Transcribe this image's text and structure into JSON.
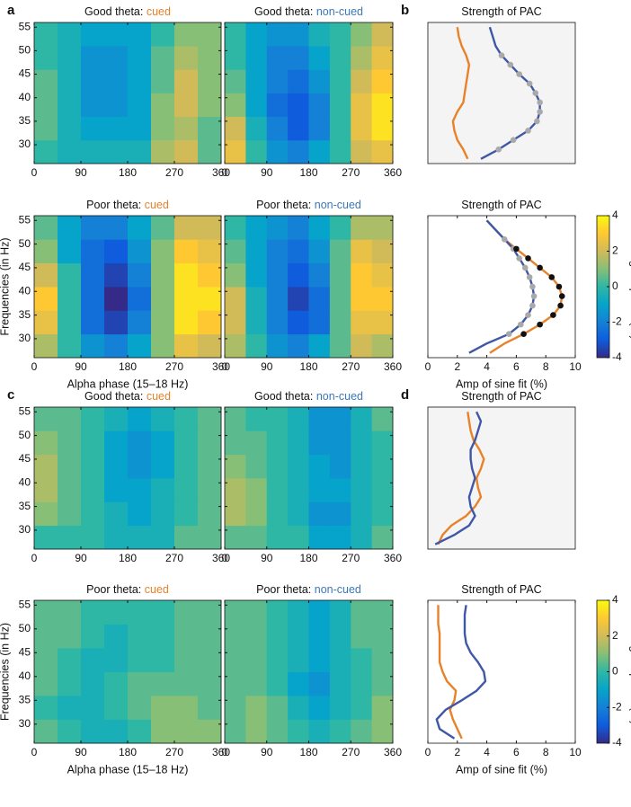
{
  "chart_data": [
    {
      "type": "heatmap",
      "panel_label": "a",
      "title": "Good theta:",
      "condition": "cued",
      "condition_color": "#e8822a",
      "x": [
        22.5,
        67.5,
        112.5,
        157.5,
        202.5,
        247.5,
        292.5,
        337.5
      ],
      "y": [
        28.5,
        33.5,
        38.5,
        43.5,
        48.5,
        53.5
      ],
      "z": [
        [
          0,
          -0.5,
          -0.5,
          -0.5,
          -0.5,
          1.5,
          2,
          0.5
        ],
        [
          0.5,
          -0.5,
          -1,
          -1,
          -1,
          1,
          1.5,
          0.5
        ],
        [
          0.5,
          -0.5,
          -1.5,
          -1.5,
          -1,
          1,
          2,
          1
        ],
        [
          0.5,
          -0.5,
          -1.5,
          -1.5,
          -1,
          0.5,
          2,
          1
        ],
        [
          0,
          -0.5,
          -1.5,
          -1.5,
          -1,
          0.5,
          1.5,
          1
        ],
        [
          0,
          -0.5,
          -1,
          -1,
          -1,
          0,
          1,
          1
        ]
      ],
      "xlim": [
        0,
        360
      ],
      "ylim": [
        26,
        56
      ],
      "xticks": [
        0,
        90,
        180,
        270,
        360
      ],
      "yticks": [
        30,
        35,
        40,
        45,
        50,
        55
      ],
      "show_ytick_labels": true
    },
    {
      "type": "heatmap",
      "title": "Good theta:",
      "condition": "non-cued",
      "condition_color": "#3b78b8",
      "x": [
        22.5,
        67.5,
        112.5,
        157.5,
        202.5,
        247.5,
        292.5,
        337.5
      ],
      "y": [
        28.5,
        33.5,
        38.5,
        43.5,
        48.5,
        53.5
      ],
      "z": [
        [
          2.5,
          0,
          -1.5,
          -2,
          -1,
          0,
          2,
          2.5
        ],
        [
          2,
          -0.5,
          -2,
          -3,
          -2,
          0,
          2.5,
          3.5
        ],
        [
          1,
          -1,
          -2.5,
          -3,
          -2,
          0,
          2.5,
          3.5
        ],
        [
          0.5,
          -1,
          -2,
          -2.5,
          -1.5,
          0,
          2,
          3
        ],
        [
          0,
          -1,
          -2,
          -2,
          -1,
          0,
          1.5,
          2.5
        ],
        [
          0,
          -1,
          -1.5,
          -1.5,
          -0.5,
          0,
          1,
          2
        ]
      ],
      "xlim": [
        0,
        360
      ],
      "ylim": [
        26,
        56
      ],
      "xticks": [
        0,
        90,
        180,
        270,
        360
      ],
      "yticks": [
        30,
        35,
        40,
        45,
        50,
        55
      ],
      "show_ytick_labels": false
    },
    {
      "type": "line",
      "panel_label": "b",
      "title": "Strength of PAC",
      "background": "#f4f4f4",
      "y": [
        27,
        29,
        31,
        33,
        35,
        37,
        39,
        41,
        43,
        45,
        47,
        49,
        51,
        53,
        55
      ],
      "series": [
        {
          "color": "#e8822a",
          "values": [
            2.7,
            2.4,
            2.0,
            1.8,
            1.7,
            2.0,
            2.4,
            2.5,
            2.6,
            2.7,
            2.8,
            2.6,
            2.3,
            2.1,
            2.0
          ]
        },
        {
          "color": "#3f57a6",
          "values": [
            3.6,
            4.8,
            5.8,
            6.8,
            7.4,
            7.6,
            7.6,
            7.3,
            6.9,
            6.2,
            5.6,
            5.0,
            4.6,
            4.4,
            4.2
          ]
        }
      ],
      "markers": [
        {
          "color": "#a9a9a9",
          "values": [
            null,
            4.8,
            5.8,
            6.8,
            7.4,
            7.6,
            7.6,
            7.3,
            6.9,
            6.2,
            5.6,
            5.0,
            null,
            null,
            null
          ]
        }
      ],
      "xlim": [
        0,
        10
      ],
      "ylim": [
        26,
        56
      ]
    },
    {
      "type": "heatmap",
      "title": "Poor theta:",
      "condition": "cued",
      "condition_color": "#e8822a",
      "x": [
        22.5,
        67.5,
        112.5,
        157.5,
        202.5,
        247.5,
        292.5,
        337.5
      ],
      "y": [
        28.5,
        33.5,
        38.5,
        43.5,
        48.5,
        53.5
      ],
      "z": [
        [
          1.5,
          0,
          -1.5,
          -2,
          -1,
          1,
          2.5,
          2
        ],
        [
          2.5,
          0,
          -2.5,
          -3.5,
          -2,
          1,
          3.5,
          3
        ],
        [
          3,
          0,
          -2.5,
          -4,
          -2.5,
          1,
          3.5,
          3.5
        ],
        [
          2,
          0,
          -2.5,
          -3.5,
          -2,
          1,
          3.5,
          3
        ],
        [
          1,
          -1,
          -2.5,
          -3,
          -1.5,
          1,
          3,
          2.5
        ],
        [
          0.5,
          -1,
          -2,
          -2,
          -1,
          0.5,
          2,
          2
        ]
      ],
      "xlim": [
        0,
        360
      ],
      "ylim": [
        26,
        56
      ],
      "xticks": [
        0,
        90,
        180,
        270,
        360
      ],
      "yticks": [
        30,
        35,
        40,
        45,
        50,
        55
      ],
      "show_ytick_labels": true,
      "xlabel": "Alpha phase (15–18 Hz)",
      "ylabel": "Frequencies (in Hz)"
    },
    {
      "type": "heatmap",
      "title": "Poor theta:",
      "condition": "non-cued",
      "condition_color": "#3b78b8",
      "x": [
        22.5,
        67.5,
        112.5,
        157.5,
        202.5,
        247.5,
        292.5,
        337.5
      ],
      "y": [
        28.5,
        33.5,
        38.5,
        43.5,
        48.5,
        53.5
      ],
      "z": [
        [
          1.5,
          0,
          -1.5,
          -2,
          -1,
          0.5,
          2,
          1.5
        ],
        [
          2,
          -0.5,
          -2,
          -3,
          -2.5,
          0.5,
          2.5,
          2.5
        ],
        [
          2,
          -0.5,
          -2,
          -3.5,
          -2.5,
          0.5,
          3,
          3
        ],
        [
          1,
          -1,
          -2,
          -3,
          -2,
          0.5,
          3,
          2.5
        ],
        [
          0.5,
          -1,
          -2,
          -2.5,
          -1.5,
          0.5,
          2.5,
          2
        ],
        [
          0,
          -1,
          -1.5,
          -2,
          -1,
          0,
          1.5,
          1.5
        ]
      ],
      "xlim": [
        0,
        360
      ],
      "ylim": [
        26,
        56
      ],
      "xticks": [
        0,
        90,
        180,
        270,
        360
      ],
      "yticks": [
        30,
        35,
        40,
        45,
        50,
        55
      ],
      "show_ytick_labels": false
    },
    {
      "type": "line",
      "title": "Strength of PAC",
      "background": "#ffffff",
      "y": [
        27,
        29,
        31,
        33,
        35,
        37,
        39,
        41,
        43,
        45,
        47,
        49,
        51,
        53,
        55
      ],
      "series": [
        {
          "color": "#e8822a",
          "values": [
            4.2,
            5.2,
            6.5,
            7.6,
            8.5,
            9.0,
            9.1,
            8.9,
            8.4,
            7.6,
            6.8,
            6.0,
            5.2,
            4.6,
            4.0
          ]
        },
        {
          "color": "#3f57a6",
          "values": [
            2.8,
            4.0,
            5.5,
            6.3,
            6.8,
            7.1,
            7.2,
            7.1,
            6.9,
            6.6,
            6.2,
            5.8,
            5.2,
            4.6,
            4.0
          ]
        }
      ],
      "markers": [
        {
          "color": "#a9a9a9",
          "values": [
            null,
            null,
            5.5,
            6.3,
            6.8,
            7.1,
            7.2,
            7.1,
            6.9,
            6.6,
            6.2,
            5.8,
            5.2,
            null,
            null
          ]
        },
        {
          "color": "#111111",
          "values": [
            null,
            null,
            6.5,
            7.6,
            8.5,
            9.0,
            9.1,
            8.9,
            8.4,
            7.6,
            6.8,
            6.0,
            null,
            null,
            null
          ]
        }
      ],
      "xlim": [
        0,
        10
      ],
      "ylim": [
        26,
        56
      ],
      "xticks": [
        0,
        2,
        4,
        6,
        8,
        10
      ],
      "xlabel": "Amp of sine fit (%)"
    },
    {
      "type": "colorbar",
      "label": "Change in power (%)",
      "lim": [
        -4,
        4
      ],
      "ticks": [
        -4,
        -2,
        0,
        2,
        4
      ],
      "colormap": [
        "#352a87",
        "#0f5cdd",
        "#1481d6",
        "#06a4ca",
        "#2eb7a4",
        "#87bf77",
        "#d1bb59",
        "#fec832",
        "#f9fb0e"
      ]
    },
    {
      "type": "heatmap",
      "panel_label": "c",
      "title": "Good theta:",
      "condition": "cued",
      "condition_color": "#e8822a",
      "x": [
        22.5,
        67.5,
        112.5,
        157.5,
        202.5,
        247.5,
        292.5,
        337.5
      ],
      "y": [
        28.5,
        33.5,
        38.5,
        43.5,
        48.5,
        53.5
      ],
      "z": [
        [
          0,
          0,
          0,
          -0.5,
          -0.5,
          -0.5,
          0.5,
          0.5
        ],
        [
          1,
          0.5,
          0,
          -0.5,
          -1,
          -0.5,
          0,
          0.5
        ],
        [
          1.5,
          0.5,
          0,
          -1,
          -1,
          -0.5,
          0,
          0.5
        ],
        [
          1.5,
          0.5,
          0,
          -1,
          -1.5,
          -1,
          0,
          0.5
        ],
        [
          1,
          0.5,
          0,
          -1,
          -1.5,
          -1,
          0,
          0.5
        ],
        [
          0.5,
          0.5,
          0,
          -0.5,
          -1,
          -0.5,
          0,
          0.5
        ]
      ],
      "xlim": [
        0,
        360
      ],
      "ylim": [
        26,
        56
      ],
      "xticks": [
        0,
        90,
        180,
        270,
        360
      ],
      "yticks": [
        30,
        35,
        40,
        45,
        50,
        55
      ],
      "show_ytick_labels": true
    },
    {
      "type": "heatmap",
      "title": "Good theta:",
      "condition": "non-cued",
      "condition_color": "#3b78b8",
      "x": [
        22.5,
        67.5,
        112.5,
        157.5,
        202.5,
        247.5,
        292.5,
        337.5
      ],
      "y": [
        28.5,
        33.5,
        38.5,
        43.5,
        48.5,
        53.5
      ],
      "z": [
        [
          0.5,
          0.5,
          0,
          0,
          -1,
          -1,
          -0.5,
          0.5
        ],
        [
          1.5,
          1,
          0,
          -0.5,
          -1.5,
          -1.5,
          -0.5,
          0
        ],
        [
          1.5,
          1,
          0,
          -0.5,
          -1,
          -1,
          -0.5,
          0
        ],
        [
          1,
          0.5,
          0,
          -0.5,
          -1,
          -1.5,
          -0.5,
          0
        ],
        [
          0.5,
          0.5,
          0,
          -0.5,
          -1.5,
          -1.5,
          -0.5,
          0
        ],
        [
          0.5,
          0,
          0,
          -0.5,
          -1.5,
          -1.5,
          -0.5,
          0.5
        ]
      ],
      "xlim": [
        0,
        360
      ],
      "ylim": [
        26,
        56
      ],
      "xticks": [
        0,
        90,
        180,
        270,
        360
      ],
      "yticks": [
        30,
        35,
        40,
        45,
        50,
        55
      ],
      "show_ytick_labels": false
    },
    {
      "type": "line",
      "panel_label": "d",
      "title": "Strength of PAC",
      "background": "#f4f4f4",
      "y": [
        27,
        29,
        31,
        33,
        35,
        37,
        39,
        41,
        43,
        45,
        47,
        49,
        51,
        53,
        55
      ],
      "series": [
        {
          "color": "#e8822a",
          "values": [
            0.7,
            1.0,
            1.6,
            2.6,
            3.2,
            3.6,
            3.4,
            3.3,
            3.6,
            3.8,
            3.5,
            3.1,
            2.9,
            2.8,
            2.7
          ]
        },
        {
          "color": "#3f57a6",
          "values": [
            0.5,
            1.8,
            2.8,
            3.2,
            2.9,
            2.8,
            3.0,
            3.2,
            3.0,
            2.9,
            2.9,
            3.2,
            3.4,
            3.6,
            3.3
          ]
        }
      ],
      "xlim": [
        0,
        10
      ],
      "ylim": [
        26,
        56
      ]
    },
    {
      "type": "heatmap",
      "title": "Poor theta:",
      "condition": "cued",
      "condition_color": "#e8822a",
      "x": [
        22.5,
        67.5,
        112.5,
        157.5,
        202.5,
        247.5,
        292.5,
        337.5
      ],
      "y": [
        28.5,
        33.5,
        38.5,
        43.5,
        48.5,
        53.5
      ],
      "z": [
        [
          0.5,
          0,
          -0.5,
          -0.5,
          0,
          1,
          1,
          1
        ],
        [
          0,
          -0.5,
          -0.5,
          0,
          0.5,
          1,
          1,
          0.5
        ],
        [
          0.5,
          0,
          -0.5,
          0,
          0.5,
          0.5,
          0.5,
          0.5
        ],
        [
          0.5,
          0,
          -0.5,
          -0.5,
          0,
          0,
          0.5,
          0.5
        ],
        [
          0.5,
          0.5,
          0,
          -0.5,
          0,
          0,
          0.5,
          0.5
        ],
        [
          0.5,
          0.5,
          0,
          0,
          0,
          0,
          0.5,
          0.5
        ]
      ],
      "xlim": [
        0,
        360
      ],
      "ylim": [
        26,
        56
      ],
      "xticks": [
        0,
        90,
        180,
        270,
        360
      ],
      "yticks": [
        30,
        35,
        40,
        45,
        50,
        55
      ],
      "show_ytick_labels": true,
      "xlabel": "Alpha phase (15–18 Hz)",
      "ylabel": "Frequencies (in Hz)"
    },
    {
      "type": "heatmap",
      "title": "Poor theta:",
      "condition": "non-cued",
      "condition_color": "#3b78b8",
      "x": [
        22.5,
        67.5,
        112.5,
        157.5,
        202.5,
        247.5,
        292.5,
        337.5
      ],
      "y": [
        28.5,
        33.5,
        38.5,
        43.5,
        48.5,
        53.5
      ],
      "z": [
        [
          0.5,
          1,
          0.5,
          0,
          -0.5,
          0,
          0.5,
          1
        ],
        [
          0.5,
          1,
          0.5,
          -0.5,
          -1,
          -0.5,
          0,
          1
        ],
        [
          0.5,
          0.5,
          0,
          -1,
          -1.5,
          -0.5,
          0,
          0.5
        ],
        [
          0.5,
          0.5,
          0,
          -0.5,
          -1,
          -0.5,
          0,
          0.5
        ],
        [
          0.5,
          0.5,
          0,
          -0.5,
          -1,
          -0.5,
          0.5,
          0.5
        ],
        [
          0.5,
          0.5,
          0,
          -0.5,
          -1,
          -0.5,
          0.5,
          0.5
        ]
      ],
      "xlim": [
        0,
        360
      ],
      "ylim": [
        26,
        56
      ],
      "xticks": [
        0,
        90,
        180,
        270,
        360
      ],
      "yticks": [
        30,
        35,
        40,
        45,
        50,
        55
      ],
      "show_ytick_labels": false
    },
    {
      "type": "line",
      "title": "Strength of PAC",
      "background": "#ffffff",
      "y": [
        27,
        29,
        31,
        33,
        35,
        37,
        39,
        41,
        43,
        45,
        47,
        49,
        51,
        53,
        55
      ],
      "series": [
        {
          "color": "#e8822a",
          "values": [
            2.3,
            2.0,
            1.7,
            1.5,
            1.8,
            1.9,
            1.3,
            1.0,
            0.8,
            0.8,
            0.8,
            0.8,
            0.7,
            0.7,
            0.7
          ]
        },
        {
          "color": "#3f57a6",
          "values": [
            1.8,
            0.8,
            0.6,
            1.2,
            2.3,
            3.3,
            3.9,
            3.8,
            3.4,
            2.9,
            2.6,
            2.5,
            2.5,
            2.5,
            2.6
          ]
        }
      ],
      "xlim": [
        0,
        10
      ],
      "ylim": [
        26,
        56
      ],
      "xticks": [
        0,
        2,
        4,
        6,
        8,
        10
      ],
      "xlabel": "Amp of sine fit (%)"
    },
    {
      "type": "colorbar",
      "label": "Change in power (%)",
      "lim": [
        -4,
        4
      ],
      "ticks": [
        -4,
        -2,
        0,
        2,
        4
      ],
      "colormap": [
        "#352a87",
        "#0f5cdd",
        "#1481d6",
        "#06a4ca",
        "#2eb7a4",
        "#87bf77",
        "#d1bb59",
        "#fec832",
        "#f9fb0e"
      ]
    }
  ]
}
